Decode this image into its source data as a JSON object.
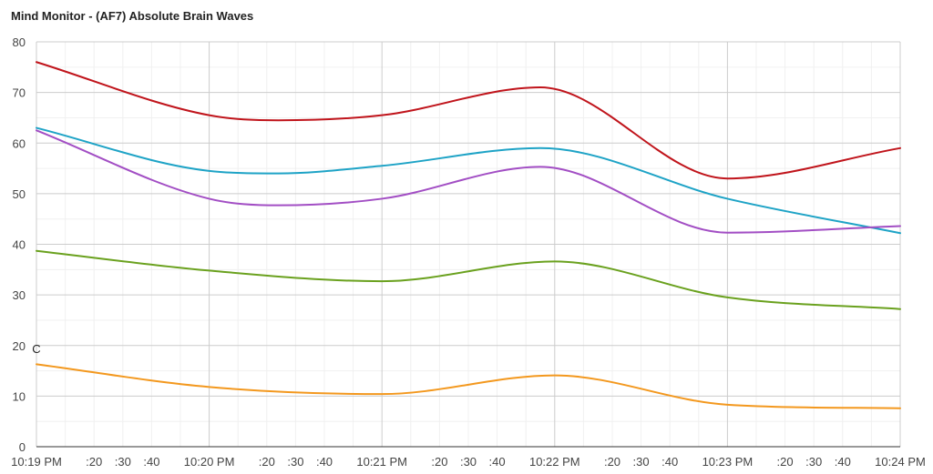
{
  "title": "Mind Monitor - (AF7) Absolute Brain Waves",
  "chart_data": {
    "type": "line",
    "title": "Mind Monitor - (AF7) Absolute Brain Waves",
    "xlabel": "",
    "ylabel": "",
    "x_unit": "seconds after 10:19 PM",
    "xlim": [
      0,
      300
    ],
    "ylim": [
      0,
      80
    ],
    "yticks": [
      0,
      10,
      20,
      30,
      40,
      50,
      60,
      70,
      80
    ],
    "xticks": [
      {
        "x": 0,
        "label": "10:19 PM"
      },
      {
        "x": 20,
        "label": ":20"
      },
      {
        "x": 30,
        "label": ":30"
      },
      {
        "x": 40,
        "label": ":40"
      },
      {
        "x": 60,
        "label": "10:20 PM"
      },
      {
        "x": 80,
        "label": ":20"
      },
      {
        "x": 90,
        "label": ":30"
      },
      {
        "x": 100,
        "label": ":40"
      },
      {
        "x": 120,
        "label": "10:21 PM"
      },
      {
        "x": 140,
        "label": ":20"
      },
      {
        "x": 150,
        "label": ":30"
      },
      {
        "x": 160,
        "label": ":40"
      },
      {
        "x": 180,
        "label": "10:22 PM"
      },
      {
        "x": 200,
        "label": ":20"
      },
      {
        "x": 210,
        "label": ":30"
      },
      {
        "x": 220,
        "label": ":40"
      },
      {
        "x": 240,
        "label": "10:23 PM"
      },
      {
        "x": 260,
        "label": ":20"
      },
      {
        "x": 270,
        "label": ":30"
      },
      {
        "x": 280,
        "label": ":40"
      },
      {
        "x": 300,
        "label": "10:24 PM"
      }
    ],
    "grid": true,
    "legend": "none",
    "annotations": [
      {
        "x": 0,
        "y": 20,
        "text": "C"
      }
    ],
    "series": [
      {
        "color": "#c0141b",
        "x": [
          0,
          60,
          84,
          120,
          175,
          240,
          300
        ],
        "y": [
          76,
          65.5,
          64.5,
          65.5,
          71,
          53,
          59
        ]
      },
      {
        "color": "#1ea3c6",
        "x": [
          0,
          60,
          84,
          120,
          175,
          240,
          300
        ],
        "y": [
          63,
          54.5,
          54,
          55.5,
          59,
          49,
          42.2
        ]
      },
      {
        "color": "#a24ec4",
        "x": [
          0,
          60,
          84,
          120,
          175,
          240,
          300
        ],
        "y": [
          62.5,
          49,
          47.7,
          49,
          55.3,
          42.3,
          43.6
        ]
      },
      {
        "color": "#6aa11e",
        "x": [
          0,
          60,
          120,
          180,
          240,
          300
        ],
        "y": [
          38.7,
          34.8,
          32.7,
          36.6,
          29.5,
          27.2
        ]
      },
      {
        "color": "#f3981e",
        "x": [
          0,
          60,
          120,
          180,
          240,
          300
        ],
        "y": [
          16.3,
          11.8,
          10.4,
          14.1,
          8.3,
          7.6
        ]
      }
    ]
  }
}
